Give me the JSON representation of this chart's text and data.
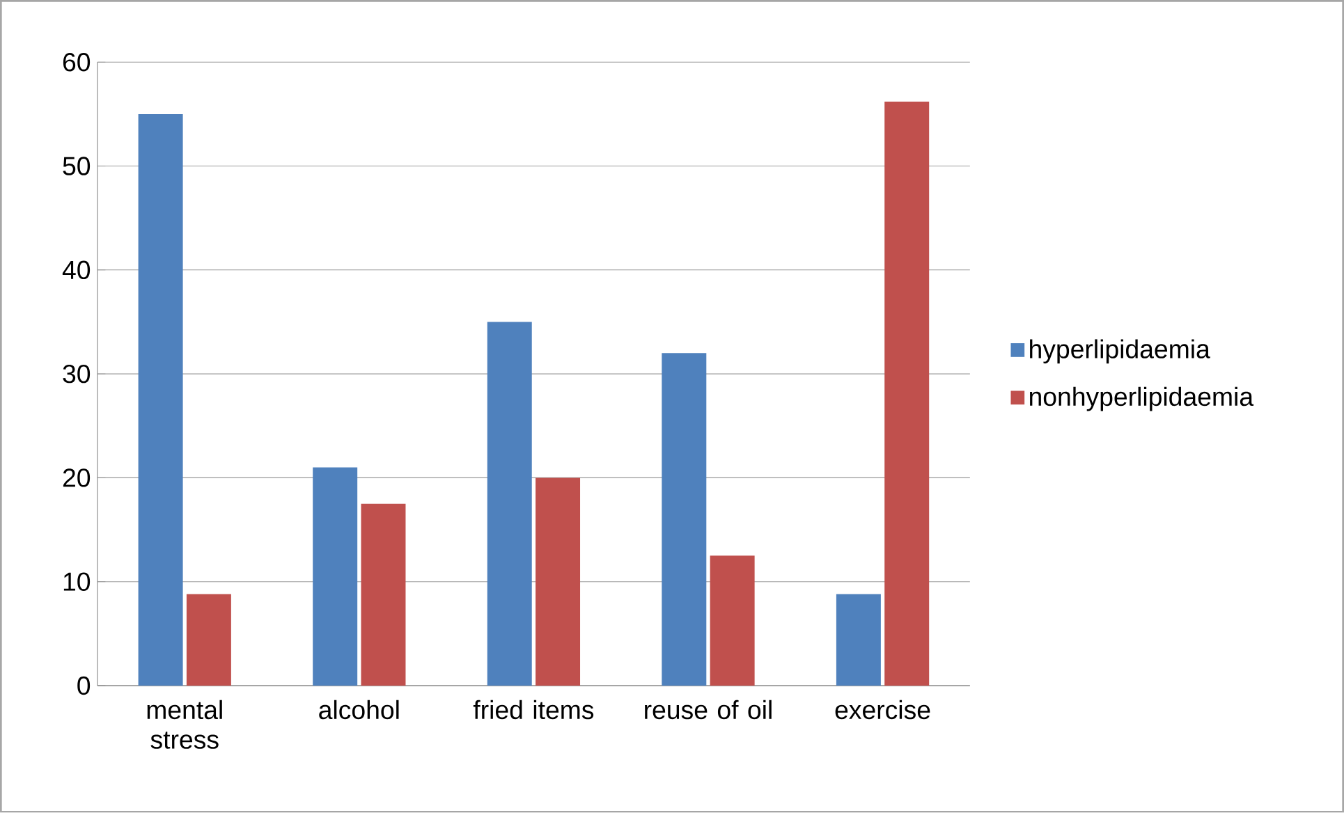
{
  "chart_data": {
    "type": "bar",
    "categories": [
      "mental stress",
      "alcohol",
      "fried items",
      "reuse of oil",
      "exercise"
    ],
    "series": [
      {
        "name": "hyperlipidaemia",
        "color": "#4f81bd",
        "values": [
          55,
          21,
          35,
          32,
          8.8
        ]
      },
      {
        "name": "nonhyperlipidaemia",
        "color": "#c0504d",
        "values": [
          8.8,
          17.5,
          20,
          12.5,
          56.2
        ]
      }
    ],
    "ylim": [
      0,
      60
    ],
    "yticks": [
      0,
      10,
      20,
      30,
      40,
      50,
      60
    ],
    "grid": "y",
    "legend": "right"
  }
}
